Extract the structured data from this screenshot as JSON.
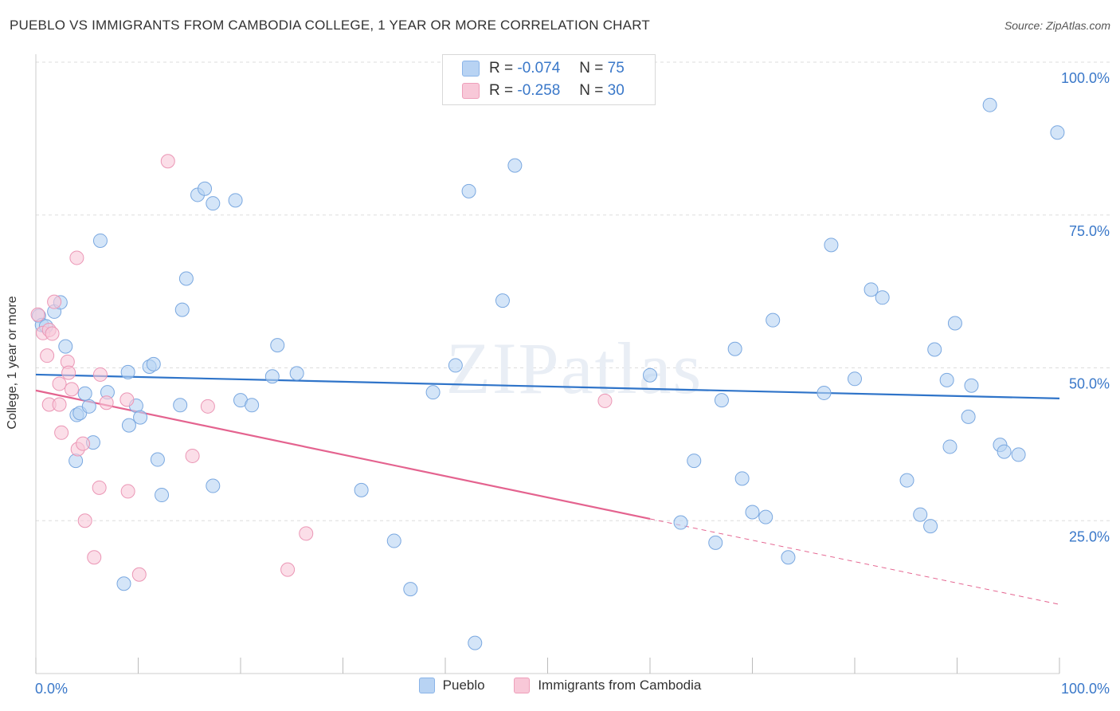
{
  "header": {
    "title": "PUEBLO VS IMMIGRANTS FROM CAMBODIA COLLEGE, 1 YEAR OR MORE CORRELATION CHART",
    "source": "Source: ZipAtlas.com"
  },
  "stats": {
    "blue": {
      "r_label": "R =",
      "r_value": "-0.074",
      "n_label": "N =",
      "n_value": "75"
    },
    "pink": {
      "r_label": "R =",
      "r_value": "-0.258",
      "n_label": "N =",
      "n_value": "30"
    }
  },
  "legend": {
    "series1": "Pueblo",
    "series2": "Immigrants from Cambodia"
  },
  "watermark": "ZIPatlas",
  "colors": {
    "blue_fill": "#b8d3f3",
    "blue_stroke": "#7aa8e0",
    "blue_line": "#2f74c9",
    "pink_fill": "#f8c8d8",
    "pink_stroke": "#eb96b5",
    "pink_line": "#e4638f",
    "tick_label": "#3a78c9",
    "grid": "#dddddd"
  },
  "chart_data": {
    "type": "scatter",
    "title": "PUEBLO VS IMMIGRANTS FROM CAMBODIA COLLEGE, 1 YEAR OR MORE CORRELATION CHART",
    "xlabel": "",
    "ylabel": "College, 1 year or more",
    "xlim": [
      0,
      100
    ],
    "ylim": [
      0,
      100
    ],
    "x_tick_labels": [
      "0.0%",
      "100.0%"
    ],
    "y_tick_labels": [
      "25.0%",
      "50.0%",
      "75.0%",
      "100.0%"
    ],
    "y_ticks": [
      25,
      50,
      75,
      100
    ],
    "grid": true,
    "legend_position": "bottom",
    "series": [
      {
        "name": "Pueblo",
        "r": -0.074,
        "n": 75,
        "trend": {
          "x": [
            0,
            100
          ],
          "y": [
            48.9,
            45.0
          ]
        },
        "points": [
          [
            0.3,
            58.5
          ],
          [
            0.6,
            57.0
          ],
          [
            1.0,
            56.8
          ],
          [
            1.8,
            59.2
          ],
          [
            2.4,
            60.7
          ],
          [
            2.9,
            53.5
          ],
          [
            4.0,
            42.3
          ],
          [
            4.3,
            42.6
          ],
          [
            4.8,
            45.8
          ],
          [
            5.2,
            43.7
          ],
          [
            5.6,
            37.8
          ],
          [
            3.9,
            34.8
          ],
          [
            7.0,
            46.0
          ],
          [
            6.3,
            70.8
          ],
          [
            8.6,
            14.7
          ],
          [
            9.0,
            49.3
          ],
          [
            9.1,
            40.6
          ],
          [
            9.8,
            43.8
          ],
          [
            10.2,
            41.9
          ],
          [
            11.1,
            50.2
          ],
          [
            11.5,
            50.6
          ],
          [
            11.9,
            35.0
          ],
          [
            12.3,
            29.2
          ],
          [
            14.1,
            43.9
          ],
          [
            14.3,
            59.5
          ],
          [
            14.7,
            64.6
          ],
          [
            15.8,
            78.3
          ],
          [
            16.5,
            79.3
          ],
          [
            17.3,
            76.9
          ],
          [
            17.3,
            30.7
          ],
          [
            19.5,
            77.4
          ],
          [
            20.0,
            44.7
          ],
          [
            21.1,
            43.9
          ],
          [
            23.1,
            48.6
          ],
          [
            23.6,
            53.7
          ],
          [
            25.5,
            49.1
          ],
          [
            31.8,
            30.0
          ],
          [
            35.0,
            21.7
          ],
          [
            36.6,
            13.8
          ],
          [
            38.8,
            46.0
          ],
          [
            41.0,
            50.4
          ],
          [
            42.3,
            78.9
          ],
          [
            42.9,
            5.0
          ],
          [
            45.6,
            61.0
          ],
          [
            46.8,
            83.1
          ],
          [
            60.0,
            48.8
          ],
          [
            63.0,
            24.7
          ],
          [
            64.3,
            34.8
          ],
          [
            66.4,
            21.4
          ],
          [
            67.0,
            44.7
          ],
          [
            68.3,
            53.1
          ],
          [
            69.0,
            31.9
          ],
          [
            70.0,
            26.4
          ],
          [
            71.3,
            25.6
          ],
          [
            72.0,
            57.8
          ],
          [
            73.5,
            19.0
          ],
          [
            77.0,
            45.9
          ],
          [
            77.7,
            70.1
          ],
          [
            80.0,
            48.2
          ],
          [
            81.6,
            62.8
          ],
          [
            82.7,
            61.5
          ],
          [
            85.1,
            31.6
          ],
          [
            86.4,
            26.0
          ],
          [
            87.4,
            24.1
          ],
          [
            87.8,
            53.0
          ],
          [
            89.0,
            48.0
          ],
          [
            89.3,
            37.1
          ],
          [
            89.8,
            57.3
          ],
          [
            91.1,
            42.0
          ],
          [
            91.4,
            47.1
          ],
          [
            94.2,
            37.4
          ],
          [
            94.6,
            36.3
          ],
          [
            96.0,
            35.8
          ],
          [
            93.2,
            93.0
          ],
          [
            99.8,
            88.5
          ]
        ]
      },
      {
        "name": "Immigrants from Cambodia",
        "r": -0.258,
        "n": 30,
        "trend": {
          "x": [
            0,
            60
          ],
          "y": [
            46.3,
            25.3
          ]
        },
        "trend_dashed": {
          "x": [
            60,
            100
          ],
          "y": [
            25.3,
            11.3
          ]
        },
        "points": [
          [
            0.2,
            58.7
          ],
          [
            0.7,
            55.7
          ],
          [
            1.3,
            56.2
          ],
          [
            1.6,
            55.6
          ],
          [
            1.8,
            60.8
          ],
          [
            1.1,
            52.0
          ],
          [
            1.3,
            44.0
          ],
          [
            2.3,
            47.4
          ],
          [
            2.3,
            44.0
          ],
          [
            2.5,
            39.4
          ],
          [
            3.1,
            51.0
          ],
          [
            3.2,
            49.2
          ],
          [
            3.5,
            46.5
          ],
          [
            4.1,
            36.7
          ],
          [
            4.6,
            37.6
          ],
          [
            4.8,
            25.0
          ],
          [
            5.7,
            19.0
          ],
          [
            6.2,
            30.4
          ],
          [
            6.3,
            48.9
          ],
          [
            6.9,
            44.3
          ],
          [
            8.9,
            44.8
          ],
          [
            9.0,
            29.8
          ],
          [
            10.1,
            16.2
          ],
          [
            12.9,
            83.8
          ],
          [
            4.0,
            68.0
          ],
          [
            15.3,
            35.6
          ],
          [
            16.8,
            43.7
          ],
          [
            24.6,
            17.0
          ],
          [
            26.4,
            22.9
          ],
          [
            55.6,
            44.6
          ]
        ]
      }
    ]
  }
}
